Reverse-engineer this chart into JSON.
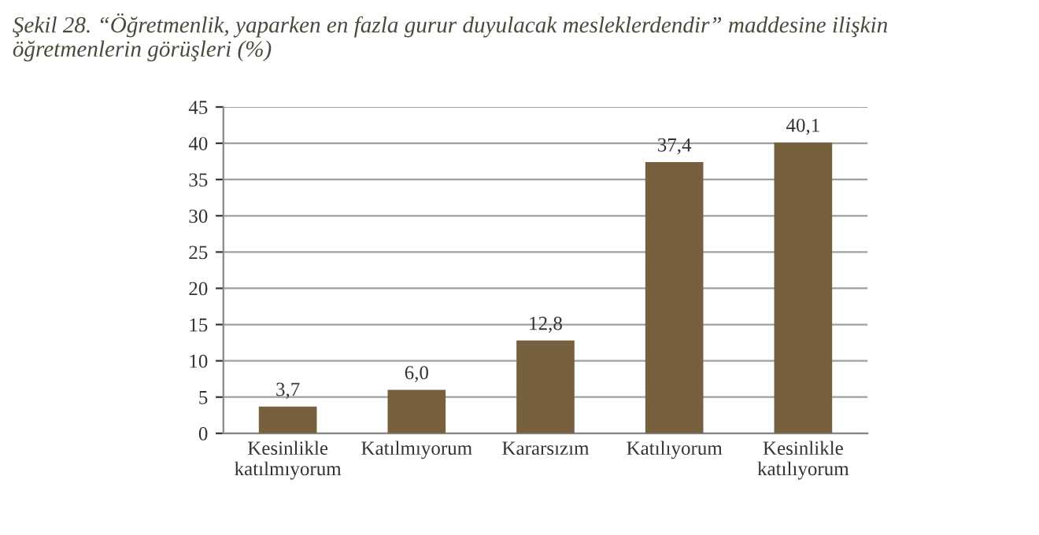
{
  "chart_data": {
    "type": "bar",
    "title": "Şekil 28. “Öğretmenlik, yaparken en fazla gurur duyulacak mesleklerdendir” maddesine ilişkin\nöğretmenlerin görüşleri (%)",
    "categories": [
      "Kesinlikle\nkatılmıyorum",
      "Katılmıyorum",
      "Kararsızım",
      "Katılıyorum",
      "Kesinlikle\nkatılıyorum"
    ],
    "values": [
      3.7,
      6.0,
      12.8,
      37.4,
      40.1
    ],
    "value_labels": [
      "3,7",
      "6,0",
      "12,8",
      "37,4",
      "40,1"
    ],
    "color": "#76603e",
    "ylim": [
      0,
      45
    ],
    "yticks": [
      0,
      5,
      10,
      15,
      20,
      25,
      30,
      35,
      40,
      45
    ],
    "grid": "y"
  }
}
